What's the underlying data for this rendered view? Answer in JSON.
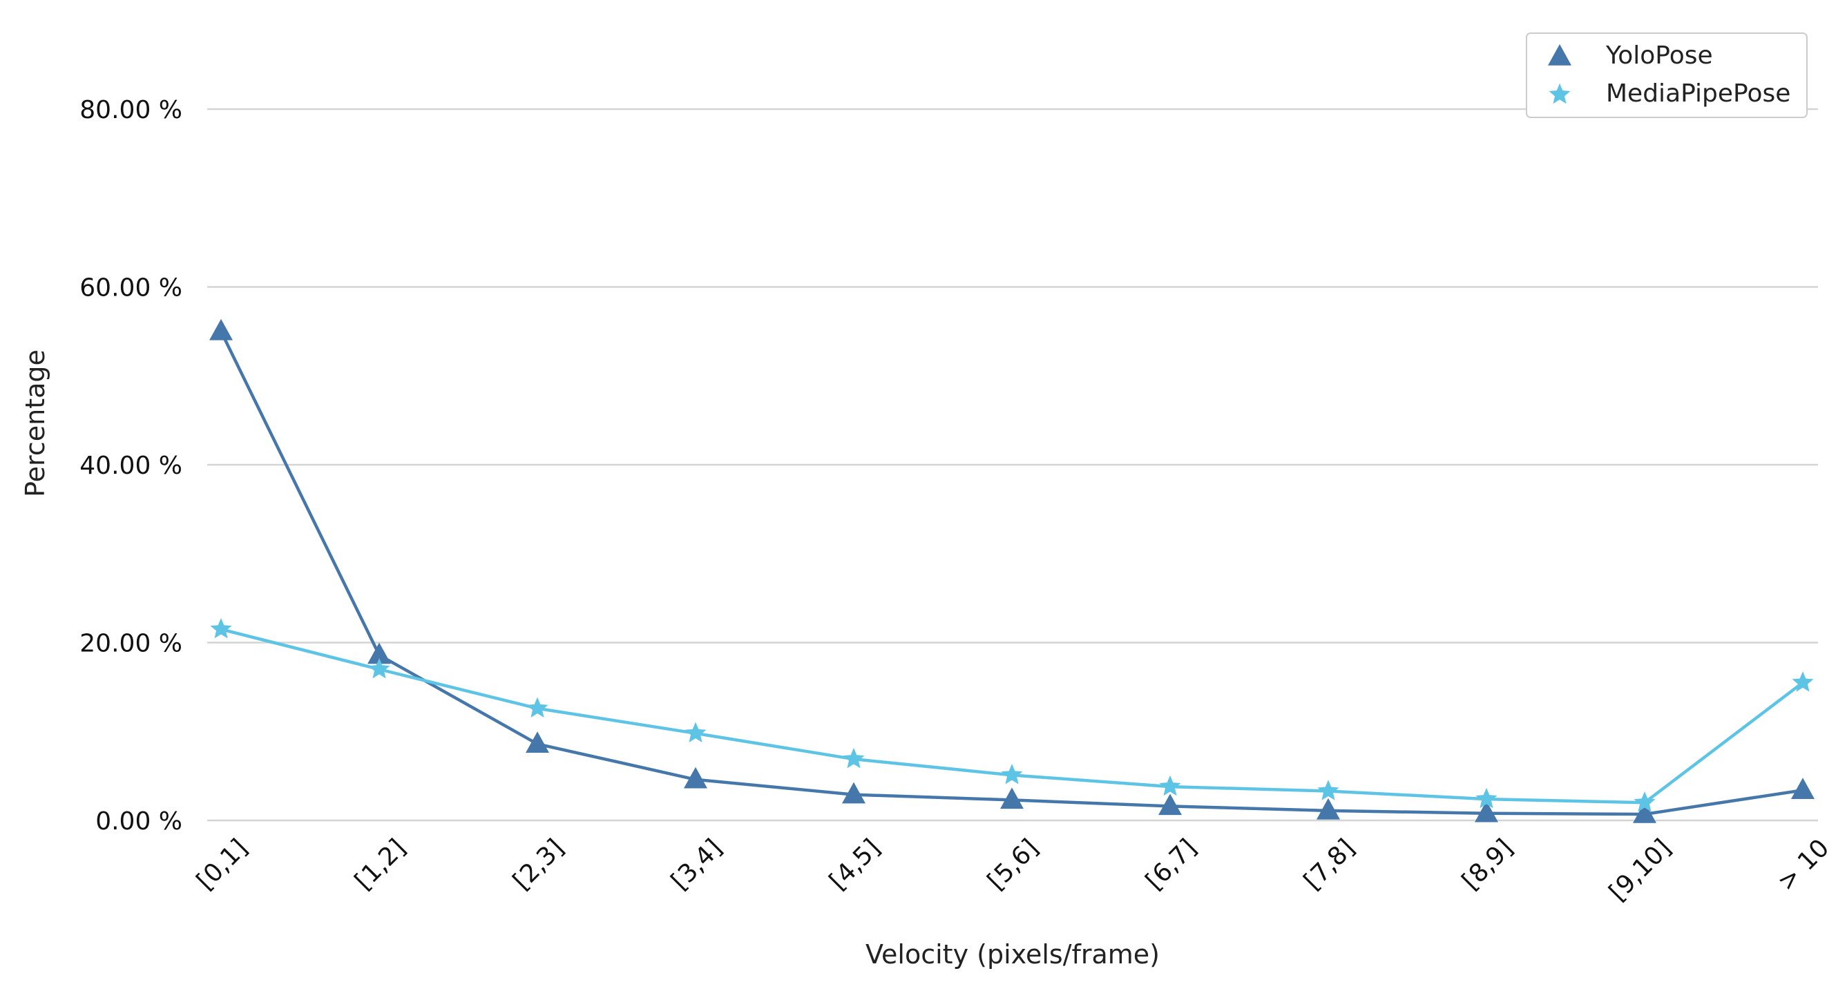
{
  "chart_data": {
    "type": "line",
    "title": "",
    "xlabel": "Velocity (pixels/frame)",
    "ylabel": "Percentage",
    "categories": [
      "[0,1]",
      "[1,2]",
      "[2,3]",
      "[3,4]",
      "[4,5]",
      "[5,6]",
      "[6,7]",
      "[7,8]",
      "[8,9]",
      "[9,10]",
      "> 10"
    ],
    "ylim": [
      0,
      80
    ],
    "yticks": [
      0,
      20,
      40,
      60,
      80
    ],
    "ytick_labels": [
      "0.00 %",
      "20.00 %",
      "40.00 %",
      "60.00 %",
      "80.00 %"
    ],
    "grid": "horizontal",
    "legend": "top-right",
    "series": [
      {
        "name": "YoloPose",
        "marker": "triangle",
        "color": "#4577aa",
        "values": [
          55.0,
          18.6,
          8.6,
          4.6,
          2.9,
          2.3,
          1.6,
          1.1,
          0.8,
          0.7,
          3.4
        ]
      },
      {
        "name": "MediaPipePose",
        "marker": "star",
        "color": "#5ec4e6",
        "values": [
          21.5,
          17.0,
          12.6,
          9.8,
          6.9,
          5.1,
          3.8,
          3.3,
          2.4,
          2.0,
          15.5
        ]
      }
    ]
  }
}
